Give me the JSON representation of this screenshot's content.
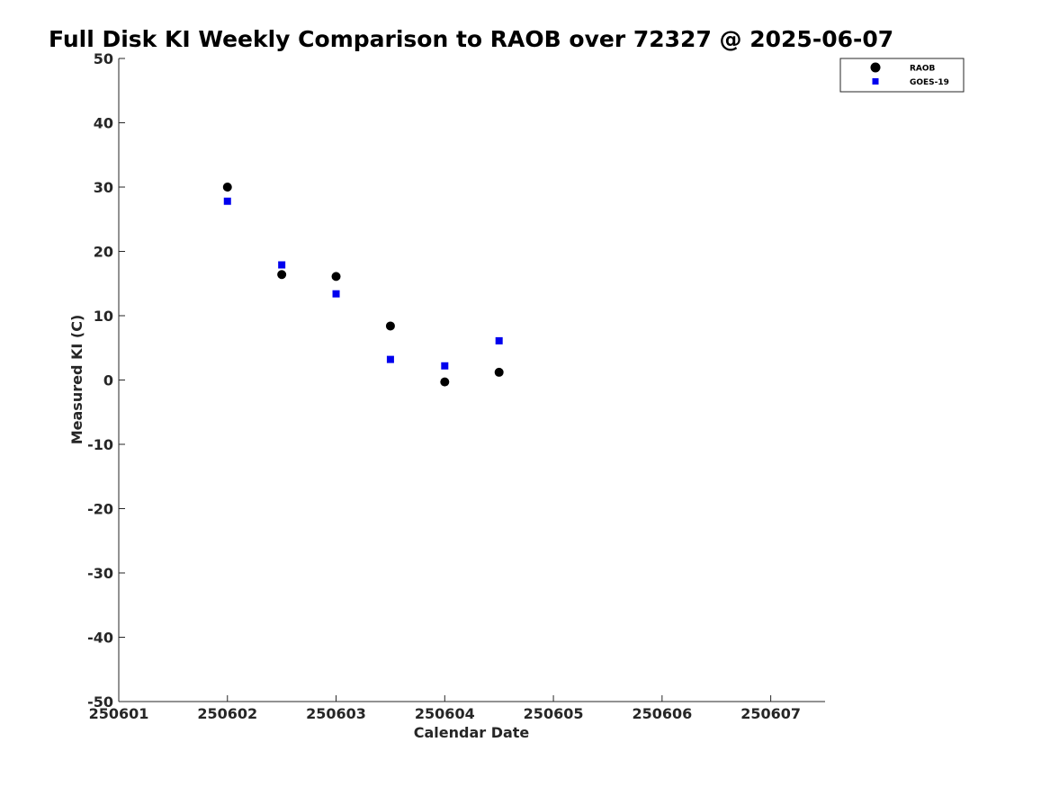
{
  "chart_data": {
    "type": "scatter",
    "title": "Full Disk KI Weekly Comparison to RAOB over 72327 @ 2025-06-07",
    "xlabel": "Calendar Date",
    "ylabel": "Measured KI (C)",
    "xlim": [
      250601,
      250607.5
    ],
    "ylim": [
      -50,
      50
    ],
    "x_ticks": [
      250601,
      250602,
      250603,
      250604,
      250605,
      250606,
      250607
    ],
    "x_tick_labels": [
      "250601",
      "250602",
      "250603",
      "250604",
      "250605",
      "250606",
      "250607"
    ],
    "y_ticks": [
      50,
      40,
      30,
      20,
      10,
      0,
      -10,
      -20,
      -30,
      -40,
      -50
    ],
    "y_tick_labels": [
      "50",
      "40",
      "30",
      "20",
      "10",
      "0",
      "-10",
      "-20",
      "-30",
      "-40",
      "-50"
    ],
    "grid": false,
    "legend_position": "top-right",
    "series": [
      {
        "name": "RAOB",
        "marker": "circle",
        "color": "#000000",
        "x": [
          250602,
          250602.5,
          250603,
          250603.5,
          250604,
          250604.5
        ],
        "y": [
          30.0,
          16.4,
          16.1,
          8.4,
          -0.3,
          1.2
        ]
      },
      {
        "name": "GOES-19",
        "marker": "square",
        "color": "#0000ee",
        "x": [
          250602,
          250602.5,
          250603,
          250603.5,
          250604,
          250604.5
        ],
        "y": [
          27.8,
          17.9,
          13.4,
          3.2,
          2.2,
          6.1
        ]
      }
    ]
  }
}
